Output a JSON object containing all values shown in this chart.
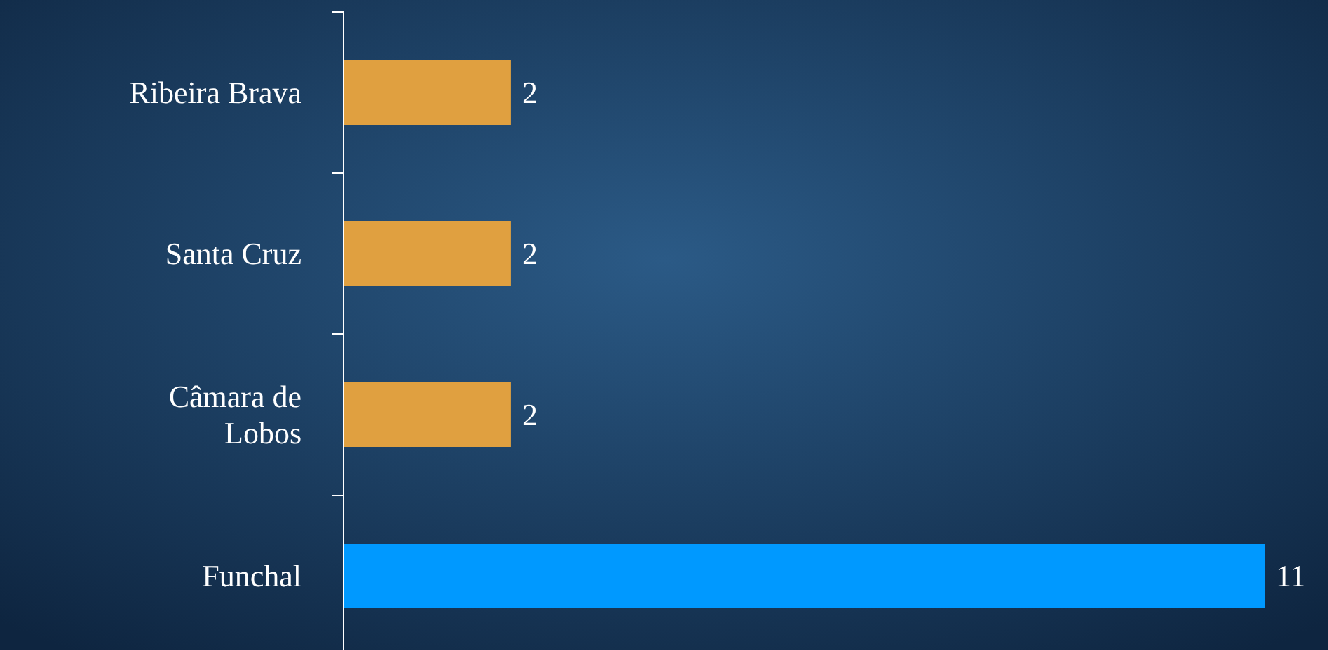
{
  "chart_data": {
    "type": "bar",
    "orientation": "horizontal",
    "categories": [
      "Ribeira Brava",
      "Santa Cruz",
      "Câmara de Lobos",
      "Funchal"
    ],
    "values": [
      2,
      2,
      2,
      11
    ],
    "colors": [
      "#e0a040",
      "#e0a040",
      "#e0a040",
      "#0099ff"
    ],
    "data_labels": true
  }
}
